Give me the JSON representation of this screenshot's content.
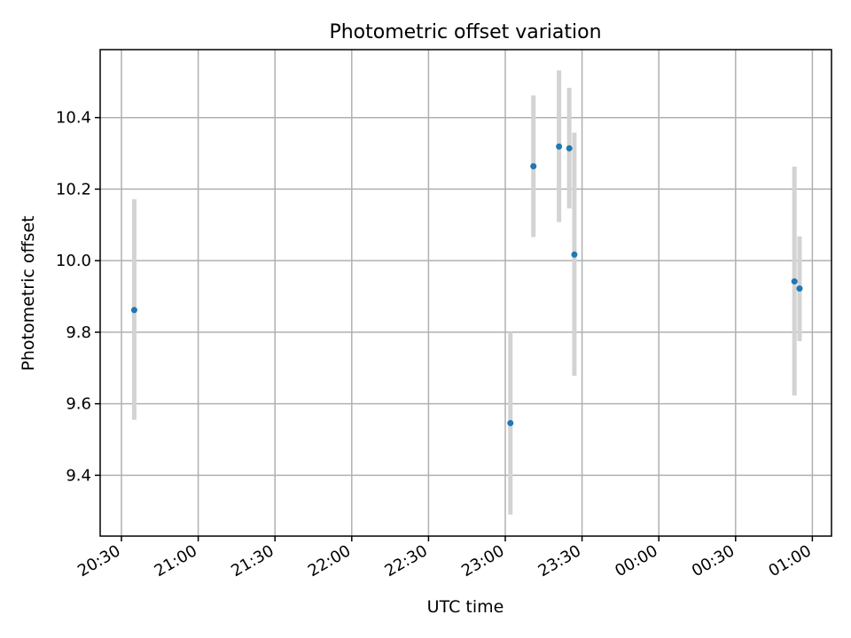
{
  "chart_data": {
    "type": "scatter",
    "title": "Photometric offset variation",
    "xlabel": "UTC time",
    "ylabel": "Photometric offset",
    "x_ticks": [
      "20:30",
      "21:00",
      "21:30",
      "22:00",
      "22:30",
      "23:00",
      "23:30",
      "00:00",
      "00:30",
      "01:00"
    ],
    "y_ticks": [
      "9.4",
      "9.6",
      "9.8",
      "10.0",
      "10.2",
      "10.4"
    ],
    "ylim": [
      9.23,
      10.59
    ],
    "grid": true,
    "colors": {
      "points": "#1f77b4",
      "error_bars": "#d3d3d3",
      "grid": "#b0b0b0"
    },
    "points": [
      {
        "x": "20:35",
        "y": 9.862,
        "yerr_low": 9.555,
        "yerr_high": 10.172
      },
      {
        "x": "23:02",
        "y": 9.546,
        "yerr_low": 9.29,
        "yerr_high": 9.8
      },
      {
        "x": "23:11",
        "y": 10.264,
        "yerr_low": 10.066,
        "yerr_high": 10.462
      },
      {
        "x": "23:21",
        "y": 10.319,
        "yerr_low": 10.108,
        "yerr_high": 10.532
      },
      {
        "x": "23:25",
        "y": 10.314,
        "yerr_low": 10.146,
        "yerr_high": 10.483
      },
      {
        "x": "23:27",
        "y": 10.017,
        "yerr_low": 9.678,
        "yerr_high": 10.358
      },
      {
        "x": "00:53",
        "y": 9.942,
        "yerr_low": 9.623,
        "yerr_high": 10.263
      },
      {
        "x": "00:55",
        "y": 9.922,
        "yerr_low": 9.775,
        "yerr_high": 10.068
      }
    ]
  }
}
